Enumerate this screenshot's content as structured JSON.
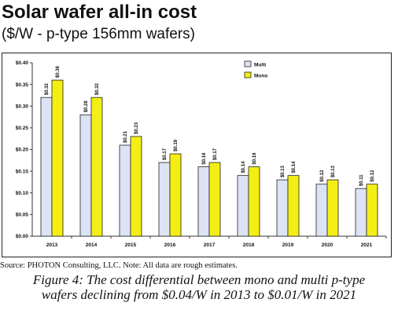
{
  "header": {
    "title": "Solar wafer all-in cost",
    "subtitle": "($/W - p-type 156mm wafers)"
  },
  "footer": {
    "source": "Source: PHOTON Consulting, LLC. Note: All data are rough estimates.",
    "caption_line1": "Figure 4: The cost differential between mono and multi p-type",
    "caption_line2": "wafers declining from $0.04/W in 2013 to $0.01/W in 2021"
  },
  "colors": {
    "multi": "#dce3f4",
    "mono": "#f3ee14",
    "bar_stroke": "#222222"
  },
  "chart_data": {
    "type": "bar",
    "categories": [
      "2013",
      "2014",
      "2015",
      "2016",
      "2017",
      "2018",
      "2019",
      "2020",
      "2021"
    ],
    "series": [
      {
        "name": "Multi",
        "values": [
          0.32,
          0.28,
          0.21,
          0.17,
          0.16,
          0.14,
          0.13,
          0.12,
          0.11
        ],
        "labels": [
          "$0.32",
          "$0.28",
          "$0.21",
          "$0.17",
          "$0.16",
          "$0.14",
          "$0.13",
          "$0.12",
          "$0.11"
        ]
      },
      {
        "name": "Mono",
        "values": [
          0.36,
          0.32,
          0.23,
          0.19,
          0.17,
          0.16,
          0.14,
          0.13,
          0.12
        ],
        "labels": [
          "$0.36",
          "$0.32",
          "$0.23",
          "$0.19",
          "$0.17",
          "$0.16",
          "$0.14",
          "$0.13",
          "$0.12"
        ]
      }
    ],
    "ylim": [
      0,
      0.4
    ],
    "yticks": [
      "$0.00",
      "$0.05",
      "$0.10",
      "$0.15",
      "$0.20",
      "$0.25",
      "$0.30",
      "$0.35",
      "$0.40"
    ],
    "xlabel": "",
    "ylabel": "",
    "grid": false,
    "legend_position": "top-right"
  }
}
